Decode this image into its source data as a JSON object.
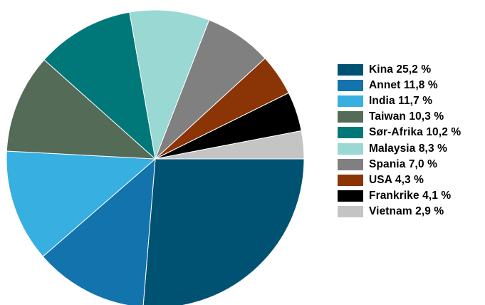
{
  "chart_data": {
    "type": "pie",
    "start_angle_clock": "3 o'clock",
    "direction": "clockwise",
    "legend_position": "right",
    "slices": [
      {
        "label": "Kina 25,2 %",
        "category": "Kina",
        "value": 25.2,
        "color": "#005272"
      },
      {
        "label": "Annet 11,8 %",
        "category": "Annet",
        "value": 11.8,
        "color": "#1273ad"
      },
      {
        "label": "India 11,7 %",
        "category": "India",
        "value": 11.7,
        "color": "#38afe1"
      },
      {
        "label": "Taiwan 10,3 %",
        "category": "Taiwan",
        "value": 10.3,
        "color": "#536b57"
      },
      {
        "label": "Sør-Afrika 10,2 %",
        "category": "Sør-Afrika",
        "value": 10.2,
        "color": "#00787a"
      },
      {
        "label": "Malaysia 8,3 %",
        "category": "Malaysia",
        "value": 8.3,
        "color": "#99d8d3"
      },
      {
        "label": "Spania 7,0 %",
        "category": "Spania",
        "value": 7.0,
        "color": "#808080"
      },
      {
        "label": "USA 4,3 %",
        "category": "USA",
        "value": 4.3,
        "color": "#8b3405"
      },
      {
        "label": "Frankrike 4,1 %",
        "category": "Frankrike",
        "value": 4.1,
        "color": "#000000"
      },
      {
        "label": "Vietnam 2,9 %",
        "category": "Vietnam",
        "value": 2.9,
        "color": "#c4c4c4"
      }
    ]
  }
}
